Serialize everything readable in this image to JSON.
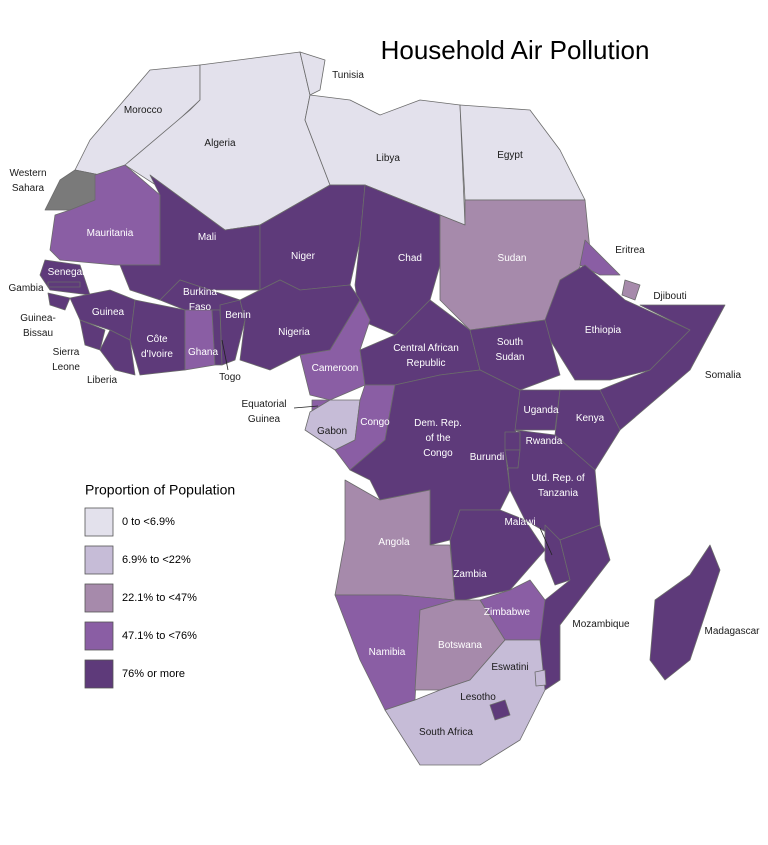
{
  "title": "Household Air Pollution",
  "legend": {
    "title": "Proportion of Population",
    "items": [
      {
        "label": "0 to <6.9%",
        "color": "#e3e1ec"
      },
      {
        "label": "6.9% to <22%",
        "color": "#c6bcd7"
      },
      {
        "label": "22.1% to <47%",
        "color": "#a68aab"
      },
      {
        "label": "47.1% to <76%",
        "color": "#8a5ea4"
      },
      {
        "label": "76% or more",
        "color": "#5e3a7a"
      }
    ],
    "no_data_color": "#7a7a7a"
  },
  "countries": [
    {
      "label": [
        "Morocco"
      ],
      "class": 0
    },
    {
      "label": [
        "Algeria"
      ],
      "class": 0
    },
    {
      "label": [
        "Tunisia"
      ],
      "class": 0
    },
    {
      "label": [
        "Libya"
      ],
      "class": 0
    },
    {
      "label": [
        "Egypt"
      ],
      "class": 0
    },
    {
      "label": [
        "Western",
        "Sahara"
      ],
      "class": null
    },
    {
      "label": [
        "Mauritania"
      ],
      "class": 3
    },
    {
      "label": [
        "Mali"
      ],
      "class": 4
    },
    {
      "label": [
        "Niger"
      ],
      "class": 4
    },
    {
      "label": [
        "Chad"
      ],
      "class": 4
    },
    {
      "label": [
        "Sudan"
      ],
      "class": 2
    },
    {
      "label": [
        "Eritrea"
      ],
      "class": 3
    },
    {
      "label": [
        "Djibouti"
      ],
      "class": 2
    },
    {
      "label": [
        "Ethiopia"
      ],
      "class": 4
    },
    {
      "label": [
        "Somalia"
      ],
      "class": 4
    },
    {
      "label": [
        "Senegal"
      ],
      "class": 4
    },
    {
      "label": [
        "Gambia"
      ],
      "class": 4
    },
    {
      "label": [
        "Guinea-",
        "Bissau"
      ],
      "class": 4
    },
    {
      "label": [
        "Guinea"
      ],
      "class": 4
    },
    {
      "label": [
        "Sierra",
        "Leone"
      ],
      "class": 4
    },
    {
      "label": [
        "Liberia"
      ],
      "class": 4
    },
    {
      "label": [
        "Côte",
        "d'Ivoire"
      ],
      "class": 4
    },
    {
      "label": [
        "Burkina",
        "Faso"
      ],
      "class": 4
    },
    {
      "label": [
        "Ghana"
      ],
      "class": 3
    },
    {
      "label": [
        "Togo"
      ],
      "class": 4
    },
    {
      "label": [
        "Benin"
      ],
      "class": 4
    },
    {
      "label": [
        "Nigeria"
      ],
      "class": 4
    },
    {
      "label": [
        "Cameroon"
      ],
      "class": 3
    },
    {
      "label": [
        "Central African",
        "Republic"
      ],
      "class": 4
    },
    {
      "label": [
        "South",
        "Sudan"
      ],
      "class": 4
    },
    {
      "label": [
        "Equatorial",
        "Guinea"
      ],
      "class": 3
    },
    {
      "label": [
        "Gabon"
      ],
      "class": 1
    },
    {
      "label": [
        "Congo"
      ],
      "class": 3
    },
    {
      "label": [
        "Dem. Rep.",
        "of the",
        "Congo"
      ],
      "class": 4
    },
    {
      "label": [
        "Uganda"
      ],
      "class": 4
    },
    {
      "label": [
        "Kenya"
      ],
      "class": 4
    },
    {
      "label": [
        "Rwanda"
      ],
      "class": 4
    },
    {
      "label": [
        "Burundi"
      ],
      "class": 4
    },
    {
      "label": [
        "Utd. Rep. of",
        "Tanzania"
      ],
      "class": 4
    },
    {
      "label": [
        "Angola"
      ],
      "class": 2
    },
    {
      "label": [
        "Zambia"
      ],
      "class": 4
    },
    {
      "label": [
        "Malawi"
      ],
      "class": 4
    },
    {
      "label": [
        "Mozambique"
      ],
      "class": 4
    },
    {
      "label": [
        "Zimbabwe"
      ],
      "class": 3
    },
    {
      "label": [
        "Namibia"
      ],
      "class": 3
    },
    {
      "label": [
        "Botswana"
      ],
      "class": 2
    },
    {
      "label": [
        "South Africa"
      ],
      "class": 1
    },
    {
      "label": [
        "Lesotho"
      ],
      "class": 4
    },
    {
      "label": [
        "Eswatini"
      ],
      "class": 1
    },
    {
      "label": [
        "Madagascar"
      ],
      "class": 4
    }
  ]
}
